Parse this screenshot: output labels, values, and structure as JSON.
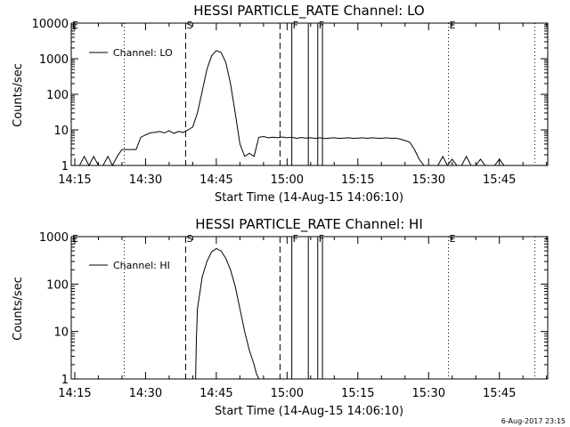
{
  "chart_data": [
    {
      "type": "line",
      "title": "HESSI PARTICLE_RATE Channel: LO",
      "xlabel": "Start Time (14-Aug-15 14:06:10)",
      "ylabel": "Counts/sec",
      "y_scale": "log",
      "ylim": [
        1,
        10000
      ],
      "y_ticks": [
        1,
        10,
        100,
        1000,
        10000
      ],
      "y_tick_labels": [
        "1",
        "10",
        "100",
        "1000",
        "10000"
      ],
      "xlim_minutes": [
        14.25,
        115.25
      ],
      "x_ticks": [
        "14:15",
        "14:30",
        "14:45",
        "15:00",
        "15:15",
        "15:30",
        "15:45"
      ],
      "legend": "top-left",
      "series": [
        {
          "name": "Channel: LO",
          "x_minutes": [
            14.25,
            16,
            17,
            18,
            19,
            20,
            21,
            22,
            23,
            24,
            25,
            26,
            27,
            28,
            29,
            30,
            31,
            32,
            33,
            34,
            35,
            36,
            37,
            38,
            39,
            40,
            41,
            42,
            43,
            44,
            45,
            46,
            47,
            48,
            49,
            50,
            51,
            52,
            53,
            54,
            55,
            56,
            57,
            58,
            59,
            60,
            61,
            62,
            63,
            64,
            65,
            66,
            67,
            68,
            69,
            70,
            71,
            72,
            73,
            74,
            75,
            76,
            77,
            78,
            79,
            80,
            81,
            82,
            83,
            84,
            85,
            86,
            87,
            88,
            89,
            90,
            91,
            92,
            93,
            94,
            95,
            96,
            97,
            98,
            99,
            100,
            101,
            102,
            103,
            104,
            105,
            106,
            107,
            108,
            109,
            110,
            111,
            112,
            113,
            114,
            115.25
          ],
          "y": [
            1,
            1,
            1.8,
            1,
            1.8,
            1,
            1,
            1.8,
            1,
            1.8,
            2.8,
            2.8,
            2.8,
            2.8,
            6.2,
            7.2,
            8.2,
            8.5,
            9,
            8.2,
            9.5,
            8,
            9,
            8.5,
            10,
            12,
            30,
            120,
            500,
            1200,
            1700,
            1500,
            800,
            200,
            30,
            4,
            1.8,
            2.2,
            1.8,
            6.2,
            6.5,
            6.0,
            6.2,
            6.0,
            6.3,
            6.0,
            6.2,
            5.8,
            6.1,
            5.9,
            6.0,
            5.8,
            6.0,
            5.7,
            5.9,
            6.0,
            5.8,
            5.9,
            6.0,
            5.8,
            5.9,
            6.0,
            5.8,
            6.0,
            5.9,
            5.8,
            6.0,
            5.8,
            5.9,
            5.5,
            5.0,
            4.5,
            2.8,
            1.5,
            1.0,
            1.0,
            1.0,
            1.0,
            1.8,
            1.0,
            1.5,
            1.0,
            1.0,
            1.8,
            1.0,
            1.0,
            1.5,
            1.0,
            1.0,
            1.0,
            1.5,
            1.0,
            1.0,
            1.0,
            1.0,
            1.0,
            1.0,
            1.0,
            1.0,
            1.0,
            1.0
          ]
        }
      ],
      "markers": [
        {
          "label": "E",
          "x_minutes": 14.25,
          "style": "dotted"
        },
        {
          "label": "S",
          "x_minutes": 38.5,
          "style": "dashed"
        },
        {
          "label": "F",
          "x_minutes": 61,
          "style": "solid"
        },
        {
          "label": "F",
          "x_minutes": 66.5,
          "style": "solid"
        },
        {
          "label": "E",
          "x_minutes": 94.2,
          "style": "dotted"
        }
      ],
      "extra_lines": [
        {
          "x_minutes": 25.5,
          "style": "dotted"
        },
        {
          "x_minutes": 58.5,
          "style": "dashed"
        },
        {
          "x_minutes": 64.5,
          "style": "solid"
        },
        {
          "x_minutes": 67.5,
          "style": "solid"
        },
        {
          "x_minutes": 112.5,
          "style": "dotted"
        }
      ]
    },
    {
      "type": "line",
      "title": "HESSI PARTICLE_RATE Channel: HI",
      "xlabel": "Start Time (14-Aug-15 14:06:10)",
      "ylabel": "Counts/sec",
      "y_scale": "log",
      "ylim": [
        1,
        1000
      ],
      "y_ticks": [
        1,
        10,
        100,
        1000
      ],
      "y_tick_labels": [
        "1",
        "10",
        "100",
        "1000"
      ],
      "xlim_minutes": [
        14.25,
        115.25
      ],
      "x_ticks": [
        "14:15",
        "14:30",
        "14:45",
        "15:00",
        "15:15",
        "15:30",
        "15:45"
      ],
      "legend": "top-left",
      "series": [
        {
          "name": "Channel: HI",
          "x_minutes": [
            40.6,
            40.8,
            41,
            42,
            43,
            44,
            45,
            46,
            47,
            48,
            49,
            50,
            51,
            52,
            53,
            53.5,
            54
          ],
          "y": [
            1,
            8,
            30,
            140,
            300,
            480,
            560,
            500,
            350,
            200,
            90,
            30,
            10,
            4,
            2,
            1.3,
            1
          ]
        }
      ],
      "markers": [
        {
          "label": "E",
          "x_minutes": 14.25,
          "style": "dotted"
        },
        {
          "label": "S",
          "x_minutes": 38.5,
          "style": "dashed"
        },
        {
          "label": "F",
          "x_minutes": 61,
          "style": "solid"
        },
        {
          "label": "F",
          "x_minutes": 66.5,
          "style": "solid"
        },
        {
          "label": "E",
          "x_minutes": 94.2,
          "style": "dotted"
        }
      ],
      "extra_lines": [
        {
          "x_minutes": 25.5,
          "style": "dotted"
        },
        {
          "x_minutes": 58.5,
          "style": "dashed"
        },
        {
          "x_minutes": 64.5,
          "style": "solid"
        },
        {
          "x_minutes": 67.5,
          "style": "solid"
        },
        {
          "x_minutes": 112.5,
          "style": "dotted"
        }
      ]
    }
  ],
  "footer": {
    "timestamp": "6-Aug-2017 23:15"
  }
}
